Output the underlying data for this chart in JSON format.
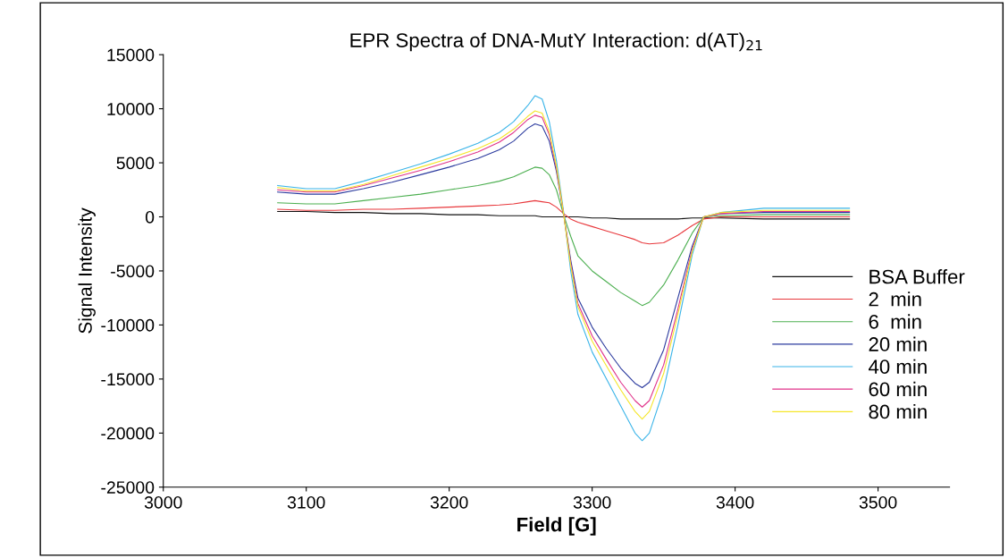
{
  "chart_data": {
    "type": "line",
    "title": "EPR Spectra of DNA-MutY Interaction: d(AT)$_{21}$",
    "xlabel": "Field [G]",
    "ylabel": "Signal Intensity",
    "x": [
      3080,
      3100,
      3120,
      3140,
      3160,
      3180,
      3200,
      3220,
      3235,
      3245,
      3255,
      3260,
      3265,
      3270,
      3275,
      3280,
      3285,
      3290,
      3300,
      3310,
      3320,
      3330,
      3335,
      3340,
      3350,
      3360,
      3370,
      3378,
      3390,
      3420,
      3450,
      3480
    ],
    "series": [
      {
        "name": "BSA Buffer",
        "color": "#111111",
        "values": [
          500,
          500,
          400,
          400,
          300,
          300,
          200,
          200,
          100,
          100,
          100,
          100,
          0,
          0,
          0,
          0,
          0,
          0,
          -100,
          -100,
          -200,
          -200,
          -200,
          -200,
          -200,
          -200,
          -100,
          -100,
          -100,
          -200,
          -200,
          -200
        ]
      },
      {
        "name": "2  min",
        "color": "#e8383c",
        "values": [
          700,
          600,
          600,
          700,
          700,
          800,
          900,
          1000,
          1100,
          1200,
          1400,
          1500,
          1400,
          1300,
          900,
          300,
          -200,
          -500,
          -900,
          -1300,
          -1700,
          -2100,
          -2400,
          -2500,
          -2400,
          -1700,
          -800,
          -200,
          0,
          0,
          0,
          0
        ]
      },
      {
        "name": "6  min",
        "color": "#4caf50",
        "values": [
          1300,
          1200,
          1200,
          1500,
          1800,
          2100,
          2500,
          2900,
          3300,
          3700,
          4300,
          4600,
          4500,
          3900,
          2500,
          200,
          -1800,
          -3600,
          -5000,
          -6000,
          -7000,
          -7800,
          -8200,
          -7900,
          -6300,
          -4000,
          -1500,
          0,
          100,
          200,
          200,
          200
        ]
      },
      {
        "name": "20 min",
        "color": "#2b3a9e",
        "values": [
          2300,
          2100,
          2100,
          2600,
          3200,
          3900,
          4600,
          5400,
          6200,
          7000,
          8200,
          8600,
          8400,
          7000,
          4200,
          300,
          -4000,
          -7500,
          -10200,
          -12200,
          -14000,
          -15400,
          -15800,
          -15300,
          -12300,
          -7500,
          -2700,
          0,
          300,
          400,
          400,
          400
        ]
      },
      {
        "name": "40 min",
        "color": "#3ab4e8",
        "values": [
          2900,
          2600,
          2600,
          3300,
          4100,
          4900,
          5800,
          6800,
          7800,
          8800,
          10300,
          11200,
          10900,
          8800,
          5200,
          500,
          -5000,
          -9000,
          -12500,
          -15000,
          -17500,
          -20000,
          -20700,
          -20000,
          -16000,
          -10000,
          -3500,
          0,
          400,
          800,
          800,
          800
        ]
      },
      {
        "name": "60 min",
        "color": "#e0338a",
        "values": [
          2500,
          2300,
          2300,
          2900,
          3600,
          4300,
          5100,
          6000,
          6900,
          7800,
          9000,
          9400,
          9200,
          7600,
          4500,
          300,
          -4300,
          -8000,
          -11000,
          -13200,
          -15300,
          -17000,
          -17600,
          -17000,
          -13700,
          -8500,
          -3000,
          0,
          300,
          500,
          500,
          500
        ]
      },
      {
        "name": "80 min",
        "color": "#f5e62a",
        "values": [
          2700,
          2400,
          2400,
          3000,
          3800,
          4600,
          5400,
          6300,
          7200,
          8100,
          9300,
          9800,
          9600,
          7900,
          4700,
          300,
          -4500,
          -8300,
          -11500,
          -13800,
          -16000,
          -18000,
          -18700,
          -18000,
          -14500,
          -9000,
          -3200,
          0,
          400,
          600,
          600,
          600
        ]
      }
    ],
    "xlim": [
      3000,
      3550
    ],
    "ylim": [
      -25000,
      15000
    ],
    "xticks": [
      3000,
      3100,
      3200,
      3300,
      3400,
      3500
    ],
    "yticks": [
      -25000,
      -20000,
      -15000,
      -10000,
      -5000,
      0,
      5000,
      10000,
      15000
    ],
    "legend": "right",
    "grid": false
  }
}
